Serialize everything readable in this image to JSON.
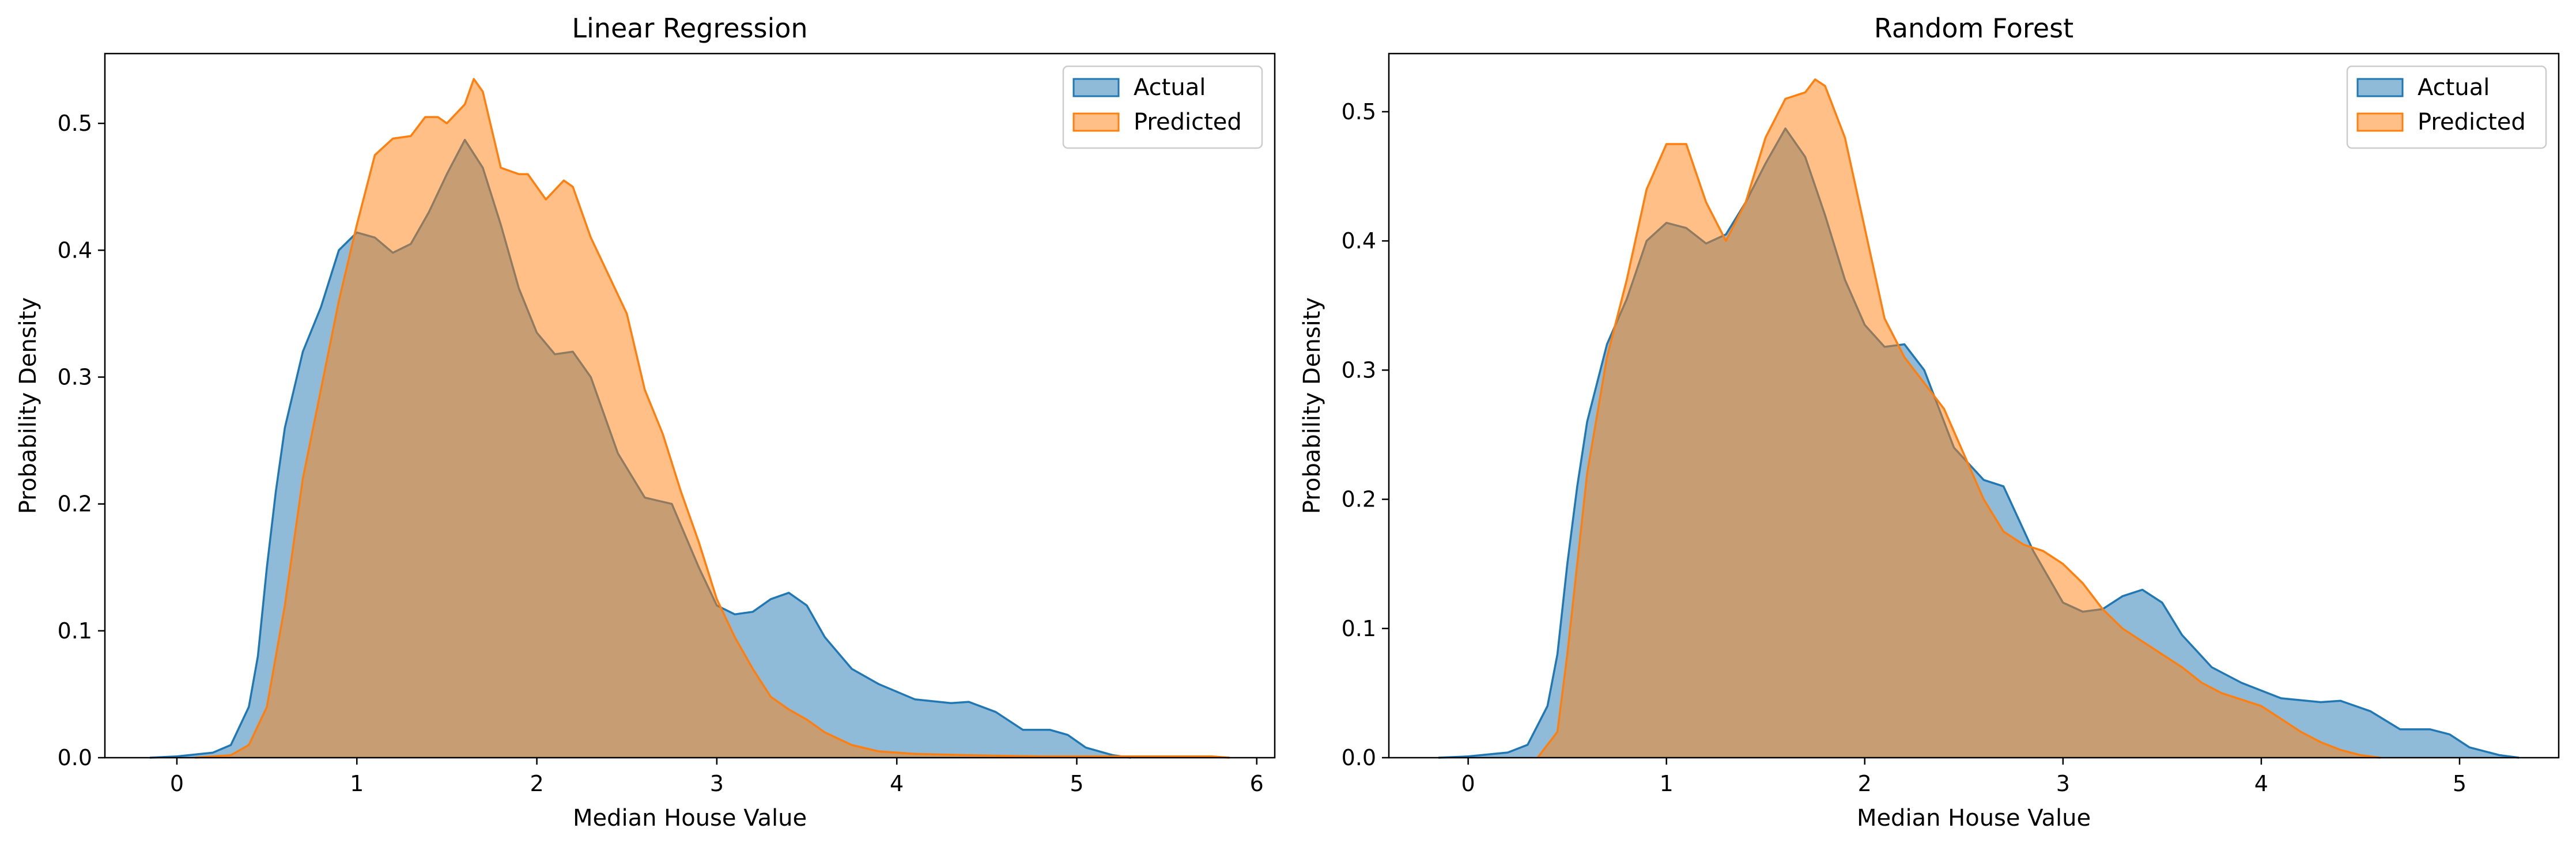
{
  "chart_data": [
    {
      "type": "area",
      "title": "Linear Regression",
      "xlabel": "Median House Value",
      "ylabel": "Probability Density",
      "xlim": [
        -0.4,
        6.1
      ],
      "ylim": [
        0,
        0.555
      ],
      "xticks": [
        0,
        1,
        2,
        3,
        4,
        5,
        6
      ],
      "xtick_labels": [
        "0",
        "1",
        "2",
        "3",
        "4",
        "5",
        "6"
      ],
      "yticks": [
        0.0,
        0.1,
        0.2,
        0.3,
        0.4,
        0.5
      ],
      "ytick_labels": [
        "0.0",
        "0.1",
        "0.2",
        "0.3",
        "0.4",
        "0.5"
      ],
      "grid": false,
      "legend_position": "top-right",
      "series": [
        {
          "name": "Actual",
          "color": "#1f77b4",
          "points": [
            [
              -0.15,
              0
            ],
            [
              0,
              0.001
            ],
            [
              0.2,
              0.004
            ],
            [
              0.3,
              0.01
            ],
            [
              0.4,
              0.04
            ],
            [
              0.45,
              0.08
            ],
            [
              0.5,
              0.15
            ],
            [
              0.55,
              0.21
            ],
            [
              0.6,
              0.26
            ],
            [
              0.7,
              0.32
            ],
            [
              0.8,
              0.355
            ],
            [
              0.9,
              0.4
            ],
            [
              1.0,
              0.414
            ],
            [
              1.1,
              0.41
            ],
            [
              1.2,
              0.398
            ],
            [
              1.3,
              0.405
            ],
            [
              1.4,
              0.43
            ],
            [
              1.5,
              0.46
            ],
            [
              1.6,
              0.487
            ],
            [
              1.7,
              0.465
            ],
            [
              1.8,
              0.42
            ],
            [
              1.9,
              0.37
            ],
            [
              2.0,
              0.335
            ],
            [
              2.1,
              0.318
            ],
            [
              2.2,
              0.32
            ],
            [
              2.3,
              0.3
            ],
            [
              2.45,
              0.24
            ],
            [
              2.6,
              0.205
            ],
            [
              2.75,
              0.2
            ],
            [
              2.9,
              0.15
            ],
            [
              3.0,
              0.12
            ],
            [
              3.1,
              0.113
            ],
            [
              3.2,
              0.115
            ],
            [
              3.3,
              0.125
            ],
            [
              3.4,
              0.13
            ],
            [
              3.5,
              0.12
            ],
            [
              3.6,
              0.095
            ],
            [
              3.75,
              0.07
            ],
            [
              3.9,
              0.058
            ],
            [
              4.1,
              0.046
            ],
            [
              4.3,
              0.043
            ],
            [
              4.4,
              0.044
            ],
            [
              4.55,
              0.036
            ],
            [
              4.7,
              0.022
            ],
            [
              4.85,
              0.022
            ],
            [
              4.95,
              0.018
            ],
            [
              5.05,
              0.008
            ],
            [
              5.2,
              0.002
            ],
            [
              5.3,
              0
            ]
          ]
        },
        {
          "name": "Predicted",
          "color": "#ff7f0e",
          "points": [
            [
              0.1,
              0
            ],
            [
              0.3,
              0.002
            ],
            [
              0.4,
              0.01
            ],
            [
              0.5,
              0.04
            ],
            [
              0.6,
              0.12
            ],
            [
              0.7,
              0.22
            ],
            [
              0.8,
              0.29
            ],
            [
              0.9,
              0.36
            ],
            [
              1.0,
              0.42
            ],
            [
              1.1,
              0.475
            ],
            [
              1.2,
              0.488
            ],
            [
              1.3,
              0.49
            ],
            [
              1.38,
              0.505
            ],
            [
              1.45,
              0.505
            ],
            [
              1.5,
              0.5
            ],
            [
              1.6,
              0.515
            ],
            [
              1.65,
              0.535
            ],
            [
              1.7,
              0.525
            ],
            [
              1.8,
              0.465
            ],
            [
              1.9,
              0.46
            ],
            [
              1.95,
              0.46
            ],
            [
              2.05,
              0.44
            ],
            [
              2.15,
              0.455
            ],
            [
              2.2,
              0.45
            ],
            [
              2.3,
              0.41
            ],
            [
              2.4,
              0.38
            ],
            [
              2.5,
              0.35
            ],
            [
              2.6,
              0.29
            ],
            [
              2.7,
              0.255
            ],
            [
              2.8,
              0.21
            ],
            [
              2.9,
              0.17
            ],
            [
              3.0,
              0.125
            ],
            [
              3.1,
              0.095
            ],
            [
              3.2,
              0.07
            ],
            [
              3.3,
              0.048
            ],
            [
              3.4,
              0.038
            ],
            [
              3.5,
              0.03
            ],
            [
              3.6,
              0.02
            ],
            [
              3.75,
              0.01
            ],
            [
              3.9,
              0.005
            ],
            [
              4.1,
              0.003
            ],
            [
              4.4,
              0.002
            ],
            [
              4.8,
              0.001
            ],
            [
              5.2,
              0.001
            ],
            [
              5.5,
              0.001
            ],
            [
              5.75,
              0.001
            ],
            [
              5.85,
              0
            ]
          ]
        }
      ]
    },
    {
      "type": "area",
      "title": "Random Forest",
      "xlabel": "Median House Value",
      "ylabel": "Probability Density",
      "xlim": [
        -0.4,
        5.5
      ],
      "ylim": [
        0,
        0.545
      ],
      "xticks": [
        0,
        1,
        2,
        3,
        4,
        5
      ],
      "xtick_labels": [
        "0",
        "1",
        "2",
        "3",
        "4",
        "5"
      ],
      "yticks": [
        0.0,
        0.1,
        0.2,
        0.3,
        0.4,
        0.5
      ],
      "ytick_labels": [
        "0.0",
        "0.1",
        "0.2",
        "0.3",
        "0.4",
        "0.5"
      ],
      "grid": false,
      "legend_position": "top-right",
      "series": [
        {
          "name": "Actual",
          "color": "#1f77b4",
          "points": [
            [
              -0.15,
              0
            ],
            [
              0,
              0.001
            ],
            [
              0.2,
              0.004
            ],
            [
              0.3,
              0.01
            ],
            [
              0.4,
              0.04
            ],
            [
              0.45,
              0.08
            ],
            [
              0.5,
              0.15
            ],
            [
              0.55,
              0.21
            ],
            [
              0.6,
              0.26
            ],
            [
              0.7,
              0.32
            ],
            [
              0.8,
              0.355
            ],
            [
              0.9,
              0.4
            ],
            [
              1.0,
              0.414
            ],
            [
              1.1,
              0.41
            ],
            [
              1.2,
              0.398
            ],
            [
              1.3,
              0.405
            ],
            [
              1.4,
              0.43
            ],
            [
              1.5,
              0.46
            ],
            [
              1.6,
              0.487
            ],
            [
              1.7,
              0.465
            ],
            [
              1.8,
              0.42
            ],
            [
              1.9,
              0.37
            ],
            [
              2.0,
              0.335
            ],
            [
              2.1,
              0.318
            ],
            [
              2.2,
              0.32
            ],
            [
              2.3,
              0.3
            ],
            [
              2.45,
              0.24
            ],
            [
              2.6,
              0.215
            ],
            [
              2.7,
              0.21
            ],
            [
              2.85,
              0.16
            ],
            [
              3.0,
              0.12
            ],
            [
              3.1,
              0.113
            ],
            [
              3.2,
              0.115
            ],
            [
              3.3,
              0.125
            ],
            [
              3.4,
              0.13
            ],
            [
              3.5,
              0.12
            ],
            [
              3.6,
              0.095
            ],
            [
              3.75,
              0.07
            ],
            [
              3.9,
              0.058
            ],
            [
              4.1,
              0.046
            ],
            [
              4.3,
              0.043
            ],
            [
              4.4,
              0.044
            ],
            [
              4.55,
              0.036
            ],
            [
              4.7,
              0.022
            ],
            [
              4.85,
              0.022
            ],
            [
              4.95,
              0.018
            ],
            [
              5.05,
              0.008
            ],
            [
              5.2,
              0.002
            ],
            [
              5.3,
              0
            ]
          ]
        },
        {
          "name": "Predicted",
          "color": "#ff7f0e",
          "points": [
            [
              0.35,
              0
            ],
            [
              0.45,
              0.02
            ],
            [
              0.5,
              0.08
            ],
            [
              0.55,
              0.15
            ],
            [
              0.6,
              0.22
            ],
            [
              0.7,
              0.31
            ],
            [
              0.8,
              0.37
            ],
            [
              0.9,
              0.44
            ],
            [
              1.0,
              0.475
            ],
            [
              1.1,
              0.475
            ],
            [
              1.2,
              0.43
            ],
            [
              1.3,
              0.4
            ],
            [
              1.4,
              0.43
            ],
            [
              1.5,
              0.48
            ],
            [
              1.6,
              0.51
            ],
            [
              1.7,
              0.515
            ],
            [
              1.75,
              0.525
            ],
            [
              1.8,
              0.52
            ],
            [
              1.9,
              0.48
            ],
            [
              2.0,
              0.41
            ],
            [
              2.1,
              0.34
            ],
            [
              2.2,
              0.31
            ],
            [
              2.3,
              0.29
            ],
            [
              2.4,
              0.27
            ],
            [
              2.5,
              0.235
            ],
            [
              2.6,
              0.2
            ],
            [
              2.7,
              0.175
            ],
            [
              2.8,
              0.165
            ],
            [
              2.9,
              0.16
            ],
            [
              3.0,
              0.15
            ],
            [
              3.1,
              0.135
            ],
            [
              3.2,
              0.115
            ],
            [
              3.3,
              0.1
            ],
            [
              3.4,
              0.09
            ],
            [
              3.5,
              0.08
            ],
            [
              3.6,
              0.07
            ],
            [
              3.7,
              0.058
            ],
            [
              3.8,
              0.05
            ],
            [
              3.9,
              0.045
            ],
            [
              4.0,
              0.04
            ],
            [
              4.1,
              0.03
            ],
            [
              4.2,
              0.02
            ],
            [
              4.3,
              0.012
            ],
            [
              4.4,
              0.006
            ],
            [
              4.5,
              0.002
            ],
            [
              4.6,
              0
            ]
          ]
        }
      ]
    }
  ]
}
